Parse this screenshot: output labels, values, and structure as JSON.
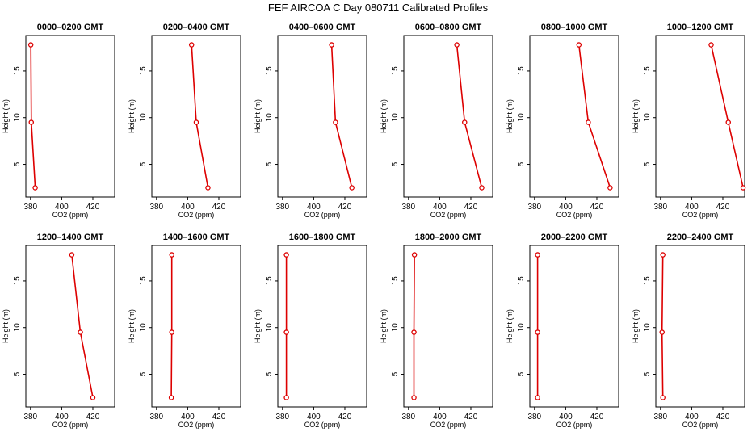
{
  "figure_title": "FEF AIRCOA C  Day 080711  Calibrated Profiles",
  "colors": {
    "line": "#dd0000",
    "axis": "#000000",
    "background": "#ffffff"
  },
  "chart_data": [
    {
      "type": "line",
      "title": "0000–0200 GMT",
      "xlabel": "CO2 (ppm)",
      "ylabel": "Height (m)",
      "xlim": [
        377,
        434
      ],
      "ylim": [
        1.5,
        18.8
      ],
      "xticks": [
        380,
        400,
        420
      ],
      "yticks": [
        5,
        10,
        15
      ],
      "heights": [
        2.5,
        9.5,
        17.8
      ],
      "co2": [
        383.0,
        380.5,
        380.2
      ]
    },
    {
      "type": "line",
      "title": "0200–0400 GMT",
      "xlabel": "CO2 (ppm)",
      "ylabel": "Height (m)",
      "xlim": [
        377,
        434
      ],
      "ylim": [
        1.5,
        18.8
      ],
      "xticks": [
        380,
        400,
        420
      ],
      "yticks": [
        5,
        10,
        15
      ],
      "heights": [
        2.5,
        9.5,
        17.8
      ],
      "co2": [
        413.0,
        405.5,
        402.5
      ]
    },
    {
      "type": "line",
      "title": "0400–0600 GMT",
      "xlabel": "CO2 (ppm)",
      "ylabel": "Height (m)",
      "xlim": [
        377,
        434
      ],
      "ylim": [
        1.5,
        18.8
      ],
      "xticks": [
        380,
        400,
        420
      ],
      "yticks": [
        5,
        10,
        15
      ],
      "heights": [
        2.5,
        9.5,
        17.8
      ],
      "co2": [
        424.5,
        414.0,
        411.5
      ]
    },
    {
      "type": "line",
      "title": "0600–0800 GMT",
      "xlabel": "CO2 (ppm)",
      "ylabel": "Height (m)",
      "xlim": [
        377,
        434
      ],
      "ylim": [
        1.5,
        18.8
      ],
      "xticks": [
        380,
        400,
        420
      ],
      "yticks": [
        5,
        10,
        15
      ],
      "heights": [
        2.5,
        9.5,
        17.8
      ],
      "co2": [
        427.0,
        416.0,
        411.0
      ]
    },
    {
      "type": "line",
      "title": "0800–1000 GMT",
      "xlabel": "CO2 (ppm)",
      "ylabel": "Height (m)",
      "xlim": [
        377,
        434
      ],
      "ylim": [
        1.5,
        18.8
      ],
      "xticks": [
        380,
        400,
        420
      ],
      "yticks": [
        5,
        10,
        15
      ],
      "heights": [
        2.5,
        9.5,
        17.8
      ],
      "co2": [
        428.5,
        414.5,
        408.5
      ]
    },
    {
      "type": "line",
      "title": "1000–1200 GMT",
      "xlabel": "CO2 (ppm)",
      "ylabel": "Height (m)",
      "xlim": [
        377,
        434
      ],
      "ylim": [
        1.5,
        18.8
      ],
      "xticks": [
        380,
        400,
        420
      ],
      "yticks": [
        5,
        10,
        15
      ],
      "heights": [
        2.5,
        9.5,
        17.8
      ],
      "co2": [
        433.0,
        423.5,
        412.5
      ]
    },
    {
      "type": "line",
      "title": "1200–1400 GMT",
      "xlabel": "CO2 (ppm)",
      "ylabel": "Height (m)",
      "xlim": [
        377,
        434
      ],
      "ylim": [
        1.5,
        18.8
      ],
      "xticks": [
        380,
        400,
        420
      ],
      "yticks": [
        5,
        10,
        15
      ],
      "heights": [
        2.5,
        9.5,
        17.8
      ],
      "co2": [
        420.0,
        412.0,
        406.5
      ]
    },
    {
      "type": "line",
      "title": "1400–1600 GMT",
      "xlabel": "CO2 (ppm)",
      "ylabel": "Height (m)",
      "xlim": [
        377,
        434
      ],
      "ylim": [
        1.5,
        18.8
      ],
      "xticks": [
        380,
        400,
        420
      ],
      "yticks": [
        5,
        10,
        15
      ],
      "heights": [
        2.5,
        9.5,
        17.8
      ],
      "co2": [
        389.5,
        389.8,
        389.8
      ]
    },
    {
      "type": "line",
      "title": "1600–1800 GMT",
      "xlabel": "CO2 (ppm)",
      "ylabel": "Height (m)",
      "xlim": [
        377,
        434
      ],
      "ylim": [
        1.5,
        18.8
      ],
      "xticks": [
        380,
        400,
        420
      ],
      "yticks": [
        5,
        10,
        15
      ],
      "heights": [
        2.5,
        9.5,
        17.8
      ],
      "co2": [
        382.5,
        382.5,
        382.5
      ]
    },
    {
      "type": "line",
      "title": "1800–2000 GMT",
      "xlabel": "CO2 (ppm)",
      "ylabel": "Height (m)",
      "xlim": [
        377,
        434
      ],
      "ylim": [
        1.5,
        18.8
      ],
      "xticks": [
        380,
        400,
        420
      ],
      "yticks": [
        5,
        10,
        15
      ],
      "heights": [
        2.5,
        9.5,
        17.8
      ],
      "co2": [
        383.5,
        383.5,
        383.8
      ]
    },
    {
      "type": "line",
      "title": "2000–2200 GMT",
      "xlabel": "CO2 (ppm)",
      "ylabel": "Height (m)",
      "xlim": [
        377,
        434
      ],
      "ylim": [
        1.5,
        18.8
      ],
      "xticks": [
        380,
        400,
        420
      ],
      "yticks": [
        5,
        10,
        15
      ],
      "heights": [
        2.5,
        9.5,
        17.8
      ],
      "co2": [
        382.0,
        382.0,
        382.0
      ]
    },
    {
      "type": "line",
      "title": "2200–2400 GMT",
      "xlabel": "CO2 (ppm)",
      "ylabel": "Height (m)",
      "xlim": [
        377,
        434
      ],
      "ylim": [
        1.5,
        18.8
      ],
      "xticks": [
        380,
        400,
        420
      ],
      "yticks": [
        5,
        10,
        15
      ],
      "heights": [
        2.5,
        9.5,
        17.8
      ],
      "co2": [
        381.5,
        381.0,
        381.5
      ]
    }
  ]
}
